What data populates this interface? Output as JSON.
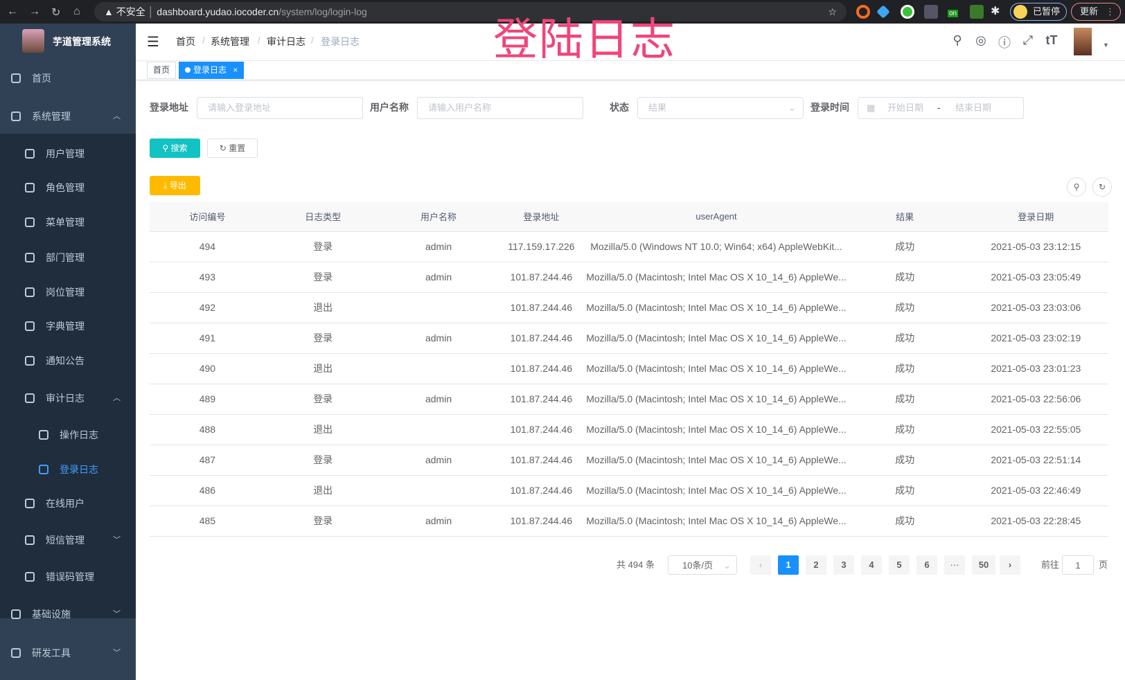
{
  "browser": {
    "insecure": "不安全",
    "url_host": "dashboard.yudao.iocoder.cn",
    "url_path": "/system/log/login-log",
    "paused": "已暂停",
    "update": "更新",
    "ext_badge": "on"
  },
  "app": {
    "title": "芋道管理系统",
    "overlay_title": "登陆日志"
  },
  "sidebar": {
    "items": [
      {
        "label": "首页",
        "level": 0,
        "icon": "dashboard-icon"
      },
      {
        "label": "系统管理",
        "level": 0,
        "icon": "gear-icon",
        "arrow": "up"
      },
      {
        "label": "用户管理",
        "level": 1,
        "icon": "user-icon"
      },
      {
        "label": "角色管理",
        "level": 1,
        "icon": "peoples-icon"
      },
      {
        "label": "菜单管理",
        "level": 1,
        "icon": "tree-table-icon"
      },
      {
        "label": "部门管理",
        "level": 1,
        "icon": "tree-icon"
      },
      {
        "label": "岗位管理",
        "level": 1,
        "icon": "post-icon"
      },
      {
        "label": "字典管理",
        "level": 1,
        "icon": "dict-icon"
      },
      {
        "label": "通知公告",
        "level": 1,
        "icon": "message-icon"
      },
      {
        "label": "审计日志",
        "level": 1,
        "icon": "log-icon",
        "arrow": "up"
      },
      {
        "label": "操作日志",
        "level": 2,
        "icon": "form-icon"
      },
      {
        "label": "登录日志",
        "level": 2,
        "icon": "logininfor-icon",
        "active": true
      },
      {
        "label": "在线用户",
        "level": 1,
        "icon": "online-icon"
      },
      {
        "label": "短信管理",
        "level": 1,
        "icon": "shield-icon",
        "arrow": "down"
      },
      {
        "label": "错误码管理",
        "level": 1,
        "icon": "code-icon"
      },
      {
        "label": "基础设施",
        "level": 0,
        "icon": "monitor-icon",
        "arrow": "down"
      },
      {
        "label": "研发工具",
        "level": 0,
        "icon": "tool-icon",
        "arrow": "down"
      }
    ]
  },
  "breadcrumb": [
    "首页",
    "系统管理",
    "审计日志",
    "登录日志"
  ],
  "tags": {
    "home": "首页",
    "current": "登录日志",
    "close": "×"
  },
  "form": {
    "login_addr_label": "登录地址",
    "login_addr_placeholder": "请输入登录地址",
    "username_label": "用户名称",
    "username_placeholder": "请输入用户名称",
    "status_label": "状态",
    "status_placeholder": "结果",
    "time_label": "登录时间",
    "start_placeholder": "开始日期",
    "range_sep": "-",
    "end_placeholder": "结束日期",
    "search": "搜索",
    "reset": "重置",
    "export": "导出"
  },
  "table": {
    "columns": [
      "访问编号",
      "日志类型",
      "用户名称",
      "登录地址",
      "userAgent",
      "结果",
      "登录日期"
    ],
    "rows": [
      [
        "494",
        "登录",
        "admin",
        "117.159.17.226",
        "Mozilla/5.0 (Windows NT 10.0; Win64; x64) AppleWebKit...",
        "成功",
        "2021-05-03 23:12:15"
      ],
      [
        "493",
        "登录",
        "admin",
        "101.87.244.46",
        "Mozilla/5.0 (Macintosh; Intel Mac OS X 10_14_6) AppleWe...",
        "成功",
        "2021-05-03 23:05:49"
      ],
      [
        "492",
        "退出",
        "",
        "101.87.244.46",
        "Mozilla/5.0 (Macintosh; Intel Mac OS X 10_14_6) AppleWe...",
        "成功",
        "2021-05-03 23:03:06"
      ],
      [
        "491",
        "登录",
        "admin",
        "101.87.244.46",
        "Mozilla/5.0 (Macintosh; Intel Mac OS X 10_14_6) AppleWe...",
        "成功",
        "2021-05-03 23:02:19"
      ],
      [
        "490",
        "退出",
        "",
        "101.87.244.46",
        "Mozilla/5.0 (Macintosh; Intel Mac OS X 10_14_6) AppleWe...",
        "成功",
        "2021-05-03 23:01:23"
      ],
      [
        "489",
        "登录",
        "admin",
        "101.87.244.46",
        "Mozilla/5.0 (Macintosh; Intel Mac OS X 10_14_6) AppleWe...",
        "成功",
        "2021-05-03 22:56:06"
      ],
      [
        "488",
        "退出",
        "",
        "101.87.244.46",
        "Mozilla/5.0 (Macintosh; Intel Mac OS X 10_14_6) AppleWe...",
        "成功",
        "2021-05-03 22:55:05"
      ],
      [
        "487",
        "登录",
        "admin",
        "101.87.244.46",
        "Mozilla/5.0 (Macintosh; Intel Mac OS X 10_14_6) AppleWe...",
        "成功",
        "2021-05-03 22:51:14"
      ],
      [
        "486",
        "退出",
        "",
        "101.87.244.46",
        "Mozilla/5.0 (Macintosh; Intel Mac OS X 10_14_6) AppleWe...",
        "成功",
        "2021-05-03 22:46:49"
      ],
      [
        "485",
        "登录",
        "admin",
        "101.87.244.46",
        "Mozilla/5.0 (Macintosh; Intel Mac OS X 10_14_6) AppleWe...",
        "成功",
        "2021-05-03 22:28:45"
      ]
    ]
  },
  "pagination": {
    "total": "共 494 条",
    "page_size": "10条/页",
    "pages": [
      "1",
      "2",
      "3",
      "4",
      "5",
      "6",
      "···",
      "50"
    ],
    "current": "1",
    "goto_label": "前往",
    "goto_value": "1",
    "goto_suffix": "页"
  },
  "colors": {
    "sidebar": "#304156",
    "primary": "#1890ff",
    "search": "#13c2c2",
    "export": "#ffba00",
    "overlay": "#f0457a"
  }
}
